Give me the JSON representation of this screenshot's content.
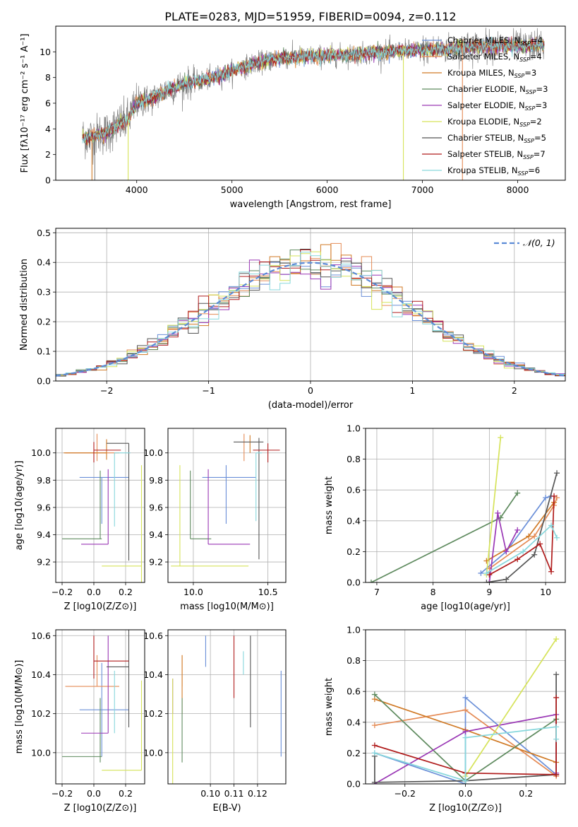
{
  "figure_title": "PLATE=0283, MJD=51959, FIBERID=0094, z=0.112",
  "model_colors": [
    "#6a8fd8",
    "#e58b55",
    "#d07a26",
    "#5e8a5e",
    "#9a37b5",
    "#d6e35a",
    "#555555",
    "#b01c1c",
    "#87d7dc"
  ],
  "chart_data": [
    {
      "id": "spectrum",
      "type": "line",
      "xlabel": "wavelength [Angstrom, rest frame]",
      "ylabel": "Flux [fλ10⁻¹⁷ erg cm⁻² s⁻¹ A⁻¹]",
      "xlim": [
        3150,
        8500
      ],
      "ylim": [
        0,
        12
      ],
      "xticks": [
        4000,
        5000,
        6000,
        7000,
        8000
      ],
      "yticks": [
        0,
        2,
        4,
        6,
        8,
        10
      ],
      "grid": false,
      "legend_position": "top-right",
      "x_data_range": [
        3430,
        8280
      ],
      "observed_color": "#808080",
      "continuum": {
        "x": [
          3430,
          3500,
          3600,
          3700,
          3800,
          3900,
          4000,
          4100,
          4200,
          4300,
          4400,
          4500,
          4700,
          4900,
          5100,
          5300,
          5500,
          5700,
          6000,
          6300,
          6600,
          6900,
          7200,
          7500,
          7800,
          8100,
          8280
        ],
        "y": [
          3.4,
          3.3,
          3.6,
          3.7,
          4.3,
          4.6,
          6.0,
          6.2,
          6.5,
          7.0,
          7.2,
          7.5,
          7.8,
          8.2,
          8.8,
          9.2,
          9.5,
          9.6,
          9.7,
          9.8,
          10.0,
          10.1,
          10.2,
          10.4,
          10.5,
          10.4,
          10.6
        ]
      },
      "legend": [
        {
          "label": "Chabrier MILES, N",
          "n": "4"
        },
        {
          "label": "Salpeter MILES, N",
          "n": "4"
        },
        {
          "label": "Kroupa MILES, N",
          "n": "3"
        },
        {
          "label": "Chabrier ELODIE, N",
          "n": "3"
        },
        {
          "label": "Salpeter ELODIE, N",
          "n": "3"
        },
        {
          "label": "Kroupa ELODIE, N",
          "n": "2"
        },
        {
          "label": "Chabrier STELIB, N",
          "n": "5"
        },
        {
          "label": "Salpeter STELIB, N",
          "n": "7"
        },
        {
          "label": "Kroupa STELIB, N",
          "n": "6"
        }
      ],
      "legend_subscript": "SSP"
    },
    {
      "id": "residuals",
      "type": "step",
      "xlabel": "(data-model)/error",
      "ylabel": "Normed distribution",
      "xlim": [
        -2.5,
        2.5
      ],
      "ylim": [
        0,
        0.515
      ],
      "xticks": [
        -2,
        -1,
        0,
        1,
        2
      ],
      "yticks": [
        0.0,
        0.1,
        0.2,
        0.3,
        0.4,
        0.5
      ],
      "grid": true,
      "legend_position": "top-right",
      "gaussian_label": "𝒩(0, 1)",
      "gaussian_color": "#5b8ad6",
      "bin_width": 0.1
    },
    {
      "id": "age-Z",
      "type": "errorbar",
      "xlabel": "Z [log10(Z/Z⊙)]",
      "ylabel": "age  [log10(age/yr)]",
      "xlim": [
        -0.24,
        0.32
      ],
      "ylim": [
        9.05,
        10.18
      ],
      "xticks": [
        -0.2,
        0.0,
        0.2
      ],
      "yticks": [
        9.2,
        9.4,
        9.6,
        9.8,
        10.0
      ],
      "grid": true,
      "points": [
        {
          "x": 0.05,
          "y": 9.82,
          "xerr": [
            0.14,
            0.17
          ],
          "yerr": [
            0.34,
            0.0
          ]
        },
        {
          "x": 0.02,
          "y": 10.0,
          "xerr": [
            0.2,
            0.14
          ],
          "yerr": [
            0.06,
            0.14
          ]
        },
        {
          "x": 0.08,
          "y": 10.0,
          "xerr": [
            0.27,
            0.0
          ],
          "yerr": [
            0.05,
            0.1
          ]
        },
        {
          "x": 0.04,
          "y": 9.37,
          "xerr": [
            0.24,
            0.01
          ],
          "yerr": [
            0.0,
            0.5
          ]
        },
        {
          "x": 0.09,
          "y": 9.33,
          "xerr": [
            0.17,
            0.0
          ],
          "yerr": [
            0.0,
            0.55
          ]
        },
        {
          "x": 0.3,
          "y": 9.17,
          "xerr": [
            0.25,
            0.0
          ],
          "yerr": [
            0.23,
            0.74
          ]
        },
        {
          "x": 0.22,
          "y": 10.07,
          "xerr": [
            0.14,
            0.0
          ],
          "yerr": [
            0.86,
            0.0
          ]
        },
        {
          "x": 0.0,
          "y": 10.02,
          "xerr": [
            0.0,
            0.17
          ],
          "yerr": [
            0.09,
            0.06
          ]
        },
        {
          "x": 0.13,
          "y": 10.0,
          "xerr": [
            0.0,
            0.1
          ],
          "yerr": [
            0.54,
            0.0
          ]
        }
      ]
    },
    {
      "id": "age-mass",
      "type": "errorbar",
      "xlabel": "mass [log10(M/M⊙)]",
      "ylabel": "",
      "xlim": [
        9.83,
        10.62
      ],
      "ylim": [
        9.05,
        10.18
      ],
      "xticks": [
        10.0,
        10.5
      ],
      "yticks": [
        9.2,
        9.4,
        9.6,
        9.8,
        10.0
      ],
      "grid": true,
      "points": [
        {
          "x": 10.22,
          "y": 9.82,
          "xerr": [
            0.16,
            0.2
          ],
          "yerr": [
            0.34,
            0.09
          ]
        },
        {
          "x": 10.34,
          "y": 10.0,
          "xerr": [
            0.0,
            0.0
          ],
          "yerr": [
            0.06,
            0.14
          ]
        },
        {
          "x": 10.38,
          "y": 10.08,
          "xerr": [
            0.0,
            0.0
          ],
          "yerr": [
            0.08,
            0.05
          ]
        },
        {
          "x": 9.98,
          "y": 9.37,
          "xerr": [
            0.0,
            0.14
          ],
          "yerr": [
            0.0,
            0.5
          ]
        },
        {
          "x": 10.1,
          "y": 9.33,
          "xerr": [
            0.0,
            0.28
          ],
          "yerr": [
            0.0,
            0.55
          ]
        },
        {
          "x": 9.91,
          "y": 9.17,
          "xerr": [
            0.06,
            0.46
          ],
          "yerr": [
            0.0,
            0.74
          ]
        },
        {
          "x": 10.44,
          "y": 10.08,
          "xerr": [
            0.17,
            0.03
          ],
          "yerr": [
            0.86,
            0.03
          ]
        },
        {
          "x": 10.5,
          "y": 10.02,
          "xerr": [
            0.1,
            0.08
          ],
          "yerr": [
            0.09,
            0.05
          ]
        },
        {
          "x": 10.42,
          "y": 10.0,
          "xerr": [
            0.0,
            0.04
          ],
          "yerr": [
            0.5,
            0.0
          ]
        }
      ]
    },
    {
      "id": "mw-age",
      "type": "line",
      "xlabel": "age  [log10(age/yr)]",
      "ylabel": "mass weight",
      "xlim": [
        6.8,
        10.35
      ],
      "ylim": [
        0,
        1
      ],
      "xticks": [
        7,
        8,
        9,
        10
      ],
      "yticks": [
        0.0,
        0.2,
        0.4,
        0.6,
        0.8,
        1.0
      ],
      "grid": true,
      "series": [
        {
          "x": [
            8.85,
            9.3,
            10.0,
            10.1
          ],
          "y": [
            0.06,
            0.2,
            0.55,
            0.56
          ]
        },
        {
          "x": [
            9.0,
            9.8,
            10.15,
            10.2
          ],
          "y": [
            0.09,
            0.3,
            0.5,
            0.55
          ]
        },
        {
          "x": [
            8.95,
            9.7,
            10.15
          ],
          "y": [
            0.14,
            0.3,
            0.52
          ]
        },
        {
          "x": [
            6.9,
            9.2,
            9.5
          ],
          "y": [
            0.0,
            0.42,
            0.58
          ]
        },
        {
          "x": [
            9.0,
            9.15,
            9.3,
            9.5
          ],
          "y": [
            0.0,
            0.45,
            0.2,
            0.34
          ]
        },
        {
          "x": [
            8.95,
            9.2
          ],
          "y": [
            0.05,
            0.94
          ]
        },
        {
          "x": [
            8.95,
            9.3,
            9.8,
            10.2
          ],
          "y": [
            0.0,
            0.02,
            0.18,
            0.71
          ]
        },
        {
          "x": [
            9.0,
            9.5,
            9.9,
            10.1,
            10.15
          ],
          "y": [
            0.05,
            0.15,
            0.25,
            0.07,
            0.56
          ]
        },
        {
          "x": [
            8.95,
            9.6,
            10.1,
            10.2
          ],
          "y": [
            0.06,
            0.2,
            0.37,
            0.29
          ]
        }
      ]
    },
    {
      "id": "mass-Z",
      "type": "errorbar",
      "xlabel": "Z [log10(Z/Z⊙)]",
      "ylabel": "mass [log10(M/M⊙)]",
      "xlim": [
        -0.24,
        0.32
      ],
      "ylim": [
        9.84,
        10.63
      ],
      "xticks": [
        -0.2,
        0.0,
        0.2
      ],
      "yticks": [
        10.0,
        10.2,
        10.4,
        10.6
      ],
      "grid": true,
      "points": [
        {
          "x": 0.05,
          "y": 10.22,
          "xerr": [
            0.14,
            0.17
          ],
          "yerr": [
            0.24,
            0.24
          ]
        },
        {
          "x": 0.02,
          "y": 10.34,
          "xerr": [
            0.2,
            0.14
          ],
          "yerr": [
            0.0,
            0.16
          ]
        },
        {
          "x": 0.08,
          "y": 10.34,
          "xerr": [
            0.0,
            0.0
          ],
          "yerr": [
            0.0,
            0.0
          ]
        },
        {
          "x": 0.04,
          "y": 9.98,
          "xerr": [
            0.24,
            0.01
          ],
          "yerr": [
            0.03,
            0.3
          ]
        },
        {
          "x": 0.09,
          "y": 10.1,
          "xerr": [
            0.17,
            0.0
          ],
          "yerr": [
            0.0,
            0.5
          ]
        },
        {
          "x": 0.3,
          "y": 9.91,
          "xerr": [
            0.25,
            0.0
          ],
          "yerr": [
            0.0,
            0.46
          ]
        },
        {
          "x": 0.22,
          "y": 10.44,
          "xerr": [
            0.14,
            0.0
          ],
          "yerr": [
            0.31,
            0.19
          ]
        },
        {
          "x": 0.0,
          "y": 10.47,
          "xerr": [
            0.0,
            0.22
          ],
          "yerr": [
            0.09,
            0.13
          ]
        },
        {
          "x": 0.13,
          "y": 10.42,
          "xerr": [
            0.0,
            0.0
          ],
          "yerr": [
            0.32,
            0.0
          ]
        }
      ]
    },
    {
      "id": "mass-EBV",
      "type": "errorbar",
      "xlabel": "E(B-V)",
      "ylabel": "",
      "xlim": [
        0.082,
        0.132
      ],
      "ylim": [
        9.84,
        10.63
      ],
      "xticks": [
        0.1,
        0.11,
        0.12
      ],
      "yticks": [
        10.0,
        10.2,
        10.4,
        10.6
      ],
      "grid": true,
      "points": [
        {
          "x": 0.13,
          "y": 10.2,
          "xerr": [
            0,
            0
          ],
          "yerr": [
            0.22,
            0.22
          ]
        },
        {
          "x": 0.088,
          "y": 10.34,
          "xerr": [
            0,
            0
          ],
          "yerr": [
            0.0,
            0.16
          ]
        },
        {
          "x": 0.088,
          "y": 10.2,
          "xerr": [
            0,
            0
          ],
          "yerr": [
            0.0,
            0.3
          ]
        },
        {
          "x": 0.088,
          "y": 10.15,
          "xerr": [
            0,
            0
          ],
          "yerr": [
            0.2,
            0.13
          ]
        },
        {
          "x": 0.084,
          "y": 10.2,
          "xerr": [
            0,
            0
          ],
          "yerr": [
            0.0,
            0.18
          ]
        },
        {
          "x": 0.084,
          "y": 10.1,
          "xerr": [
            0,
            0
          ],
          "yerr": [
            0.26,
            0.28
          ]
        },
        {
          "x": 0.117,
          "y": 10.4,
          "xerr": [
            0,
            0
          ],
          "yerr": [
            0.27,
            0.2
          ]
        },
        {
          "x": 0.11,
          "y": 10.45,
          "xerr": [
            0,
            0
          ],
          "yerr": [
            0.17,
            0.15
          ]
        },
        {
          "x": 0.114,
          "y": 10.4,
          "xerr": [
            0,
            0
          ],
          "yerr": [
            0.0,
            0.12
          ]
        },
        {
          "x": 0.098,
          "y": 10.44,
          "xerr": [
            0,
            0
          ],
          "yerr": [
            0.0,
            0.16
          ]
        }
      ]
    },
    {
      "id": "mw-Z",
      "type": "line",
      "xlabel": "Z [log10(Z/Z⊙)]",
      "ylabel": "mass weight",
      "xlim": [
        -0.33,
        0.33
      ],
      "ylim": [
        0,
        1
      ],
      "xticks": [
        -0.2,
        0.0,
        0.2
      ],
      "yticks": [
        0.0,
        0.2,
        0.4,
        0.6,
        0.8,
        1.0
      ],
      "grid": true,
      "series": [
        {
          "x": [
            -0.3,
            0.0,
            0.0,
            0.3
          ],
          "y": [
            0.2,
            0.0,
            0.56,
            0.06
          ]
        },
        {
          "x": [
            -0.3,
            0.0,
            0.3
          ],
          "y": [
            0.38,
            0.48,
            0.05
          ]
        },
        {
          "x": [
            -0.3,
            0.0,
            0.3
          ],
          "y": [
            0.55,
            0.35,
            0.14
          ]
        },
        {
          "x": [
            -0.3,
            0.0,
            0.3
          ],
          "y": [
            0.58,
            0.02,
            0.42
          ]
        },
        {
          "x": [
            -0.3,
            0.0,
            0.3,
            0.3
          ],
          "y": [
            0.0,
            0.34,
            0.45,
            0.07
          ]
        },
        {
          "x": [
            0.0,
            0.3
          ],
          "y": [
            0.05,
            0.94
          ]
        },
        {
          "x": [
            -0.3,
            -0.3,
            0.0,
            0.3,
            0.3
          ],
          "y": [
            0.18,
            0.01,
            0.02,
            0.06,
            0.71
          ]
        },
        {
          "x": [
            -0.3,
            0.0,
            0.3,
            0.3
          ],
          "y": [
            0.25,
            0.07,
            0.06,
            0.56
          ]
        },
        {
          "x": [
            -0.3,
            0.0,
            0.0,
            0.3,
            0.3
          ],
          "y": [
            0.2,
            0.02,
            0.3,
            0.37,
            0.29
          ]
        }
      ]
    }
  ]
}
